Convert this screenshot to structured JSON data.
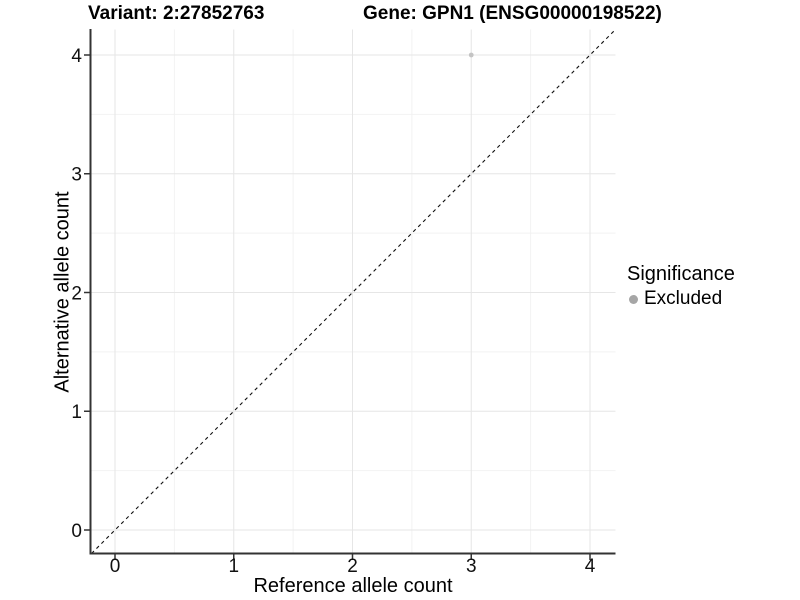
{
  "chart_data": {
    "type": "scatter",
    "titles": {
      "left": "Variant: 2:27852763",
      "right": "Gene: GPN1 (ENSG00000198522)"
    },
    "x": {
      "label": "Reference allele count",
      "ticks": [
        0,
        1,
        2,
        3,
        4
      ],
      "range": [
        -0.21,
        4.21
      ],
      "minor_grid_step": 0.5
    },
    "y": {
      "label": "Alternative allele count",
      "ticks": [
        0,
        1,
        2,
        3,
        4
      ],
      "range": [
        -0.21,
        4.21
      ],
      "minor_grid_step": 0.5
    },
    "points": [
      {
        "x": 3,
        "y": 4,
        "significance": "Excluded",
        "color": "#c4c4c4",
        "radius": 2.4
      }
    ],
    "identity_line": {
      "slope": 1,
      "intercept": 0,
      "style": "dashed",
      "color": "#111111"
    },
    "legend": {
      "title": "Significance",
      "position": "right",
      "items": [
        {
          "label": "Excluded",
          "marker": "circle",
          "color": "#a6a6a6"
        }
      ]
    },
    "style": {
      "background": "#ffffff",
      "grid_major_color": "#e6e6e6",
      "grid_minor_color": "#f2f2f2",
      "axis_line_color": "#333333",
      "tick_mark_color": "#333333",
      "tick_label_color": "#111111"
    }
  }
}
